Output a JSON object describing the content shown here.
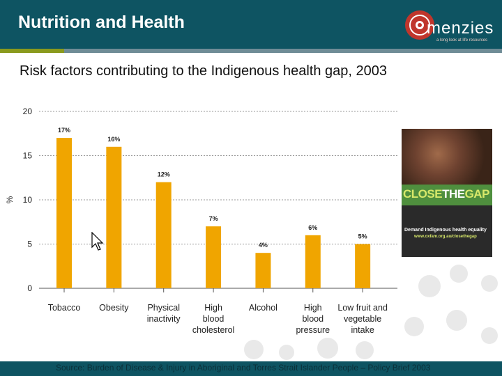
{
  "header": {
    "title": "Nutrition and Health",
    "logo_text": "menzies",
    "logo_tagline": "a long look at life resources",
    "bg_color": "#0e5462"
  },
  "subtitle": "Risk factors contributing to the Indigenous health gap, 2003",
  "chart_data": {
    "type": "bar",
    "title": "",
    "xlabel": "",
    "ylabel": "%",
    "ylim": [
      0,
      20
    ],
    "yticks": [
      0,
      5,
      10,
      15,
      20
    ],
    "grid": true,
    "bar_color": "#f0a500",
    "categories": [
      [
        "Tobacco"
      ],
      [
        "Obesity"
      ],
      [
        "Physical",
        "inactivity"
      ],
      [
        "High",
        "blood",
        "cholesterol"
      ],
      [
        "Alcohol"
      ],
      [
        "High",
        "blood",
        "pressure"
      ],
      [
        "Low fruit and",
        "vegetable",
        "intake"
      ]
    ],
    "values": [
      17,
      16,
      12,
      7,
      4,
      6,
      5
    ],
    "data_labels": [
      "17%",
      "16%",
      "12%",
      "7%",
      "4%",
      "6%",
      "5%"
    ]
  },
  "poster": {
    "word_close": "CLOSE",
    "word_the": "THE",
    "word_gap": "GAP",
    "line_demand": "Demand Indigenous health equality",
    "line_web": "www.oxfam.org.au/closethegap"
  },
  "footer": {
    "source": "Source: Burden of Disease & Injury in Aboriginal and Torres Strait Islander People – Policy Brief 2003"
  }
}
